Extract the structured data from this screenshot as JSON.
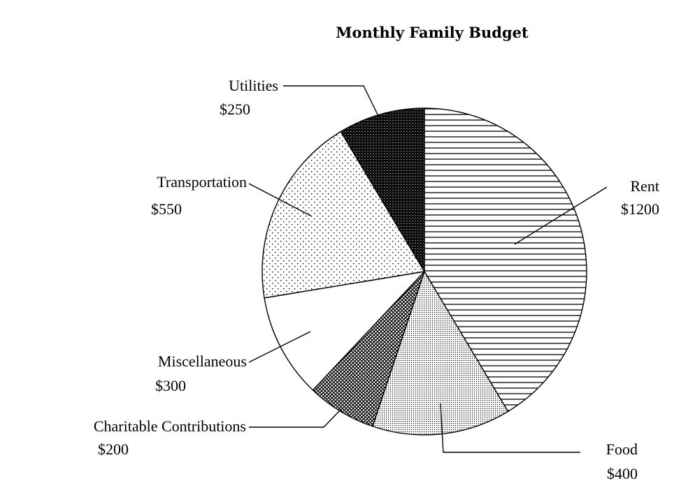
{
  "chart_data": {
    "type": "pie",
    "title": "Monthly Family Budget",
    "slices": [
      {
        "label": "Rent",
        "value_label": "$1200",
        "value": 1200,
        "pattern": "hlines"
      },
      {
        "label": "Food",
        "value_label": "$400",
        "value": 400,
        "pattern": "fine-dots"
      },
      {
        "label": "Charitable Contributions",
        "value_label": "$200",
        "value": 200,
        "pattern": "crosshatch"
      },
      {
        "label": "Miscellaneous",
        "value_label": "$300",
        "value": 300,
        "pattern": "none"
      },
      {
        "label": "Transportation",
        "value_label": "$550",
        "value": 550,
        "pattern": "sparse-dots"
      },
      {
        "label": "Utilities",
        "value_label": "$250",
        "value": 250,
        "pattern": "dense-crosshatch"
      }
    ],
    "legend": "none",
    "colors": {
      "stroke": "#000000",
      "fill": "#ffffff"
    }
  }
}
